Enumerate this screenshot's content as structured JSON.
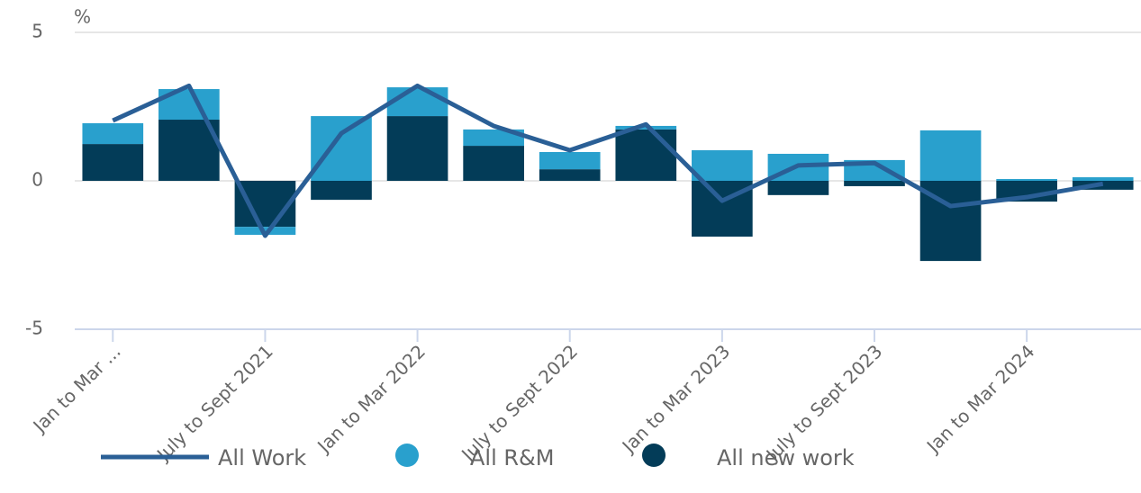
{
  "chart_data": {
    "type": "stacked_bar_line",
    "y_unit_label": "%",
    "categories": [
      "Jan to Mar ...",
      null,
      "July to Sept 2021",
      null,
      "Jan to Mar 2022",
      null,
      "July to Sept 2022",
      null,
      "Jan to Mar 2023",
      null,
      "July to Sept 2023",
      null,
      "Jan to Mar 2024",
      null
    ],
    "series": [
      {
        "name": "All Work",
        "kind": "line",
        "color": "#2a5f96",
        "values": [
          2.03,
          3.2,
          -1.85,
          1.6,
          3.2,
          1.85,
          1.03,
          1.9,
          -0.67,
          0.52,
          0.6,
          -0.85,
          -0.55,
          -0.1
        ]
      },
      {
        "name": "All R&M",
        "kind": "bar",
        "color": "#29a0cd",
        "values": [
          0.7,
          1.03,
          -0.27,
          2.18,
          0.97,
          0.55,
          0.58,
          0.12,
          1.03,
          0.91,
          0.7,
          1.7,
          0.06,
          0.12
        ]
      },
      {
        "name": "All new work",
        "kind": "bar",
        "color": "#033c58",
        "values": [
          1.24,
          2.06,
          -1.55,
          -0.64,
          2.18,
          1.18,
          0.39,
          1.73,
          -1.88,
          -0.48,
          -0.18,
          -2.7,
          -0.7,
          -0.3
        ]
      }
    ],
    "ylim": [
      -5,
      5
    ],
    "yticks": [
      -5,
      0,
      5
    ],
    "grid": true
  }
}
